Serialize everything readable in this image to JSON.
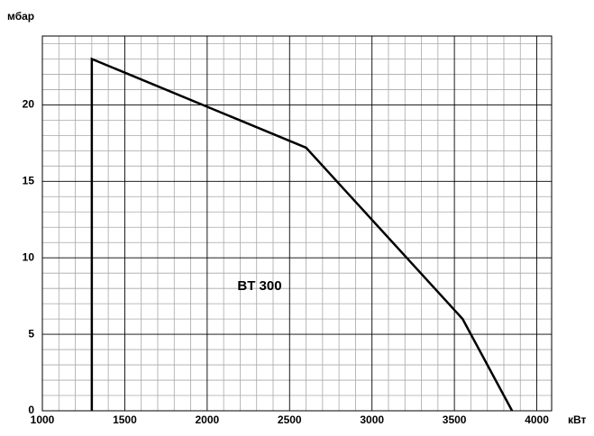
{
  "chart_data": {
    "type": "line",
    "ylabel": "мбар",
    "xlabel": "кВт",
    "annotation": "BT 300",
    "x": [
      1300,
      1300,
      2600,
      3550,
      3850
    ],
    "series": [
      {
        "name": "BT 300",
        "color": "#000000",
        "values": [
          0,
          23,
          17.2,
          6,
          0
        ]
      }
    ],
    "xlim": [
      1000,
      4090
    ],
    "xticks": [
      1000,
      1500,
      2000,
      2500,
      3000,
      3500,
      4000
    ],
    "ylim": [
      0,
      24.5
    ],
    "yticks": [
      0,
      5,
      10,
      15,
      20
    ],
    "grid": true
  }
}
